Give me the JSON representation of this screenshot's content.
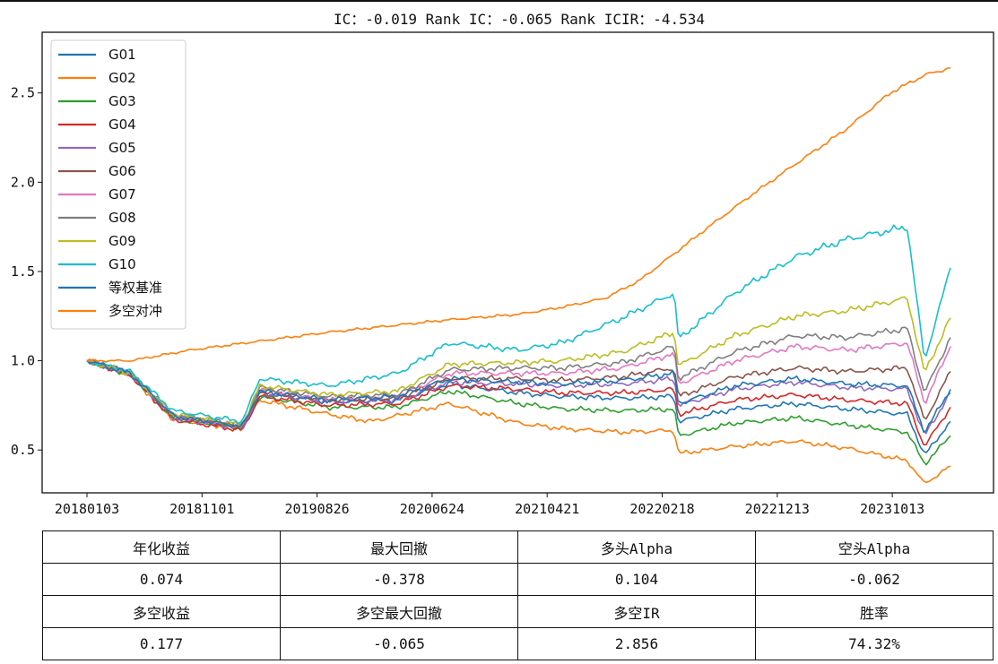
{
  "chart_data": {
    "type": "line",
    "title": "IC：-0.019    Rank IC：-0.065    Rank ICIR：-4.534",
    "xlabel": "",
    "ylabel": "",
    "x_tick_labels": [
      "20180103",
      "20181101",
      "20190826",
      "20200624",
      "20210421",
      "20220218",
      "20221213",
      "20231013"
    ],
    "x_range": [
      "20180103",
      "20240531"
    ],
    "ylim": [
      0.26,
      2.84
    ],
    "y_ticks": [
      0.5,
      1.0,
      1.5,
      2.0,
      2.5
    ],
    "y_tick_labels": [
      "0.5",
      "1.0",
      "1.5",
      "2.0",
      "2.5"
    ],
    "grid": false,
    "legend_position": "upper-left",
    "series": [
      {
        "name": "G01",
        "color": "#1f77b4",
        "points": [
          [
            0,
            1.0
          ],
          [
            0.05,
            0.93
          ],
          [
            0.1,
            0.68
          ],
          [
            0.18,
            0.63
          ],
          [
            0.2,
            0.82
          ],
          [
            0.28,
            0.77
          ],
          [
            0.36,
            0.78
          ],
          [
            0.42,
            0.87
          ],
          [
            0.5,
            0.82
          ],
          [
            0.55,
            0.8
          ],
          [
            0.62,
            0.79
          ],
          [
            0.68,
            0.8
          ],
          [
            0.685,
            0.66
          ],
          [
            0.75,
            0.73
          ],
          [
            0.82,
            0.76
          ],
          [
            0.88,
            0.73
          ],
          [
            0.95,
            0.7
          ],
          [
            0.97,
            0.47
          ],
          [
            1.0,
            0.66
          ]
        ]
      },
      {
        "name": "G02",
        "color": "#ff7f0e",
        "points": [
          [
            0,
            1.0
          ],
          [
            0.05,
            0.92
          ],
          [
            0.1,
            0.67
          ],
          [
            0.18,
            0.62
          ],
          [
            0.2,
            0.78
          ],
          [
            0.28,
            0.7
          ],
          [
            0.33,
            0.66
          ],
          [
            0.42,
            0.76
          ],
          [
            0.5,
            0.65
          ],
          [
            0.55,
            0.62
          ],
          [
            0.62,
            0.6
          ],
          [
            0.68,
            0.61
          ],
          [
            0.685,
            0.48
          ],
          [
            0.75,
            0.52
          ],
          [
            0.82,
            0.55
          ],
          [
            0.88,
            0.51
          ],
          [
            0.95,
            0.44
          ],
          [
            0.97,
            0.31
          ],
          [
            1.0,
            0.41
          ]
        ]
      },
      {
        "name": "G03",
        "color": "#2ca02c",
        "points": [
          [
            0,
            1.0
          ],
          [
            0.05,
            0.92
          ],
          [
            0.1,
            0.68
          ],
          [
            0.18,
            0.62
          ],
          [
            0.2,
            0.8
          ],
          [
            0.28,
            0.74
          ],
          [
            0.36,
            0.74
          ],
          [
            0.42,
            0.83
          ],
          [
            0.5,
            0.76
          ],
          [
            0.55,
            0.73
          ],
          [
            0.62,
            0.72
          ],
          [
            0.68,
            0.73
          ],
          [
            0.685,
            0.58
          ],
          [
            0.75,
            0.65
          ],
          [
            0.82,
            0.68
          ],
          [
            0.88,
            0.64
          ],
          [
            0.95,
            0.6
          ],
          [
            0.97,
            0.42
          ],
          [
            1.0,
            0.58
          ]
        ]
      },
      {
        "name": "G04",
        "color": "#d62728",
        "points": [
          [
            0,
            1.0
          ],
          [
            0.05,
            0.92
          ],
          [
            0.1,
            0.67
          ],
          [
            0.18,
            0.61
          ],
          [
            0.2,
            0.8
          ],
          [
            0.28,
            0.75
          ],
          [
            0.36,
            0.76
          ],
          [
            0.42,
            0.86
          ],
          [
            0.5,
            0.84
          ],
          [
            0.55,
            0.82
          ],
          [
            0.62,
            0.82
          ],
          [
            0.68,
            0.84
          ],
          [
            0.685,
            0.7
          ],
          [
            0.75,
            0.78
          ],
          [
            0.82,
            0.81
          ],
          [
            0.88,
            0.78
          ],
          [
            0.95,
            0.76
          ],
          [
            0.97,
            0.52
          ],
          [
            1.0,
            0.74
          ]
        ]
      },
      {
        "name": "G05",
        "color": "#9467bd",
        "points": [
          [
            0,
            1.0
          ],
          [
            0.05,
            0.93
          ],
          [
            0.1,
            0.68
          ],
          [
            0.18,
            0.62
          ],
          [
            0.2,
            0.82
          ],
          [
            0.28,
            0.77
          ],
          [
            0.36,
            0.78
          ],
          [
            0.42,
            0.88
          ],
          [
            0.5,
            0.87
          ],
          [
            0.55,
            0.86
          ],
          [
            0.62,
            0.87
          ],
          [
            0.68,
            0.9
          ],
          [
            0.685,
            0.75
          ],
          [
            0.75,
            0.84
          ],
          [
            0.82,
            0.88
          ],
          [
            0.88,
            0.85
          ],
          [
            0.95,
            0.84
          ],
          [
            0.97,
            0.58
          ],
          [
            1.0,
            0.82
          ]
        ]
      },
      {
        "name": "G06",
        "color": "#8c564b",
        "points": [
          [
            0,
            1.0
          ],
          [
            0.05,
            0.93
          ],
          [
            0.1,
            0.69
          ],
          [
            0.18,
            0.63
          ],
          [
            0.2,
            0.83
          ],
          [
            0.28,
            0.78
          ],
          [
            0.36,
            0.79
          ],
          [
            0.42,
            0.9
          ],
          [
            0.5,
            0.9
          ],
          [
            0.55,
            0.89
          ],
          [
            0.62,
            0.91
          ],
          [
            0.68,
            0.96
          ],
          [
            0.685,
            0.8
          ],
          [
            0.75,
            0.91
          ],
          [
            0.82,
            0.96
          ],
          [
            0.88,
            0.94
          ],
          [
            0.95,
            0.96
          ],
          [
            0.97,
            0.66
          ],
          [
            1.0,
            0.94
          ]
        ]
      },
      {
        "name": "G07",
        "color": "#e377c2",
        "points": [
          [
            0,
            1.0
          ],
          [
            0.05,
            0.93
          ],
          [
            0.1,
            0.69
          ],
          [
            0.18,
            0.63
          ],
          [
            0.2,
            0.84
          ],
          [
            0.28,
            0.79
          ],
          [
            0.36,
            0.8
          ],
          [
            0.42,
            0.93
          ],
          [
            0.5,
            0.93
          ],
          [
            0.55,
            0.93
          ],
          [
            0.62,
            0.96
          ],
          [
            0.68,
            1.04
          ],
          [
            0.685,
            0.87
          ],
          [
            0.75,
            1.0
          ],
          [
            0.82,
            1.08
          ],
          [
            0.88,
            1.06
          ],
          [
            0.95,
            1.1
          ],
          [
            0.97,
            0.76
          ],
          [
            1.0,
            1.08
          ]
        ]
      },
      {
        "name": "G08",
        "color": "#7f7f7f",
        "points": [
          [
            0,
            1.0
          ],
          [
            0.05,
            0.93
          ],
          [
            0.1,
            0.7
          ],
          [
            0.18,
            0.64
          ],
          [
            0.2,
            0.85
          ],
          [
            0.28,
            0.8
          ],
          [
            0.36,
            0.81
          ],
          [
            0.42,
            0.95
          ],
          [
            0.5,
            0.96
          ],
          [
            0.55,
            0.96
          ],
          [
            0.62,
            0.99
          ],
          [
            0.68,
            1.08
          ],
          [
            0.685,
            0.9
          ],
          [
            0.75,
            1.05
          ],
          [
            0.82,
            1.14
          ],
          [
            0.88,
            1.13
          ],
          [
            0.95,
            1.18
          ],
          [
            0.97,
            0.82
          ],
          [
            1.0,
            1.13
          ]
        ]
      },
      {
        "name": "G09",
        "color": "#bcbd22",
        "points": [
          [
            0,
            1.0
          ],
          [
            0.05,
            0.93
          ],
          [
            0.1,
            0.7
          ],
          [
            0.18,
            0.64
          ],
          [
            0.2,
            0.86
          ],
          [
            0.28,
            0.81
          ],
          [
            0.36,
            0.83
          ],
          [
            0.42,
            0.98
          ],
          [
            0.5,
            0.99
          ],
          [
            0.55,
            1.0
          ],
          [
            0.62,
            1.05
          ],
          [
            0.68,
            1.16
          ],
          [
            0.685,
            0.97
          ],
          [
            0.75,
            1.14
          ],
          [
            0.82,
            1.25
          ],
          [
            0.88,
            1.28
          ],
          [
            0.95,
            1.35
          ],
          [
            0.97,
            0.93
          ],
          [
            1.0,
            1.24
          ]
        ]
      },
      {
        "name": "G10",
        "color": "#17becf",
        "points": [
          [
            0,
            1.0
          ],
          [
            0.05,
            0.94
          ],
          [
            0.1,
            0.72
          ],
          [
            0.18,
            0.66
          ],
          [
            0.2,
            0.9
          ],
          [
            0.28,
            0.86
          ],
          [
            0.36,
            0.93
          ],
          [
            0.42,
            1.1
          ],
          [
            0.5,
            1.06
          ],
          [
            0.55,
            1.1
          ],
          [
            0.62,
            1.24
          ],
          [
            0.68,
            1.38
          ],
          [
            0.685,
            1.12
          ],
          [
            0.75,
            1.38
          ],
          [
            0.82,
            1.58
          ],
          [
            0.88,
            1.68
          ],
          [
            0.95,
            1.75
          ],
          [
            0.97,
            1.0
          ],
          [
            1.0,
            1.52
          ]
        ]
      },
      {
        "name": "等权基准",
        "color": "#1f77b4",
        "points": [
          [
            0,
            1.0
          ],
          [
            0.05,
            0.93
          ],
          [
            0.1,
            0.69
          ],
          [
            0.18,
            0.63
          ],
          [
            0.2,
            0.83
          ],
          [
            0.28,
            0.78
          ],
          [
            0.36,
            0.8
          ],
          [
            0.42,
            0.9
          ],
          [
            0.5,
            0.88
          ],
          [
            0.55,
            0.87
          ],
          [
            0.62,
            0.89
          ],
          [
            0.68,
            0.93
          ],
          [
            0.685,
            0.76
          ],
          [
            0.75,
            0.86
          ],
          [
            0.82,
            0.9
          ],
          [
            0.88,
            0.87
          ],
          [
            0.95,
            0.86
          ],
          [
            0.97,
            0.6
          ],
          [
            1.0,
            0.84
          ]
        ]
      },
      {
        "name": "多空对冲",
        "color": "#ff7f0e",
        "points": [
          [
            0,
            1.0
          ],
          [
            0.05,
            1.0
          ],
          [
            0.12,
            1.06
          ],
          [
            0.2,
            1.11
          ],
          [
            0.28,
            1.16
          ],
          [
            0.36,
            1.2
          ],
          [
            0.42,
            1.23
          ],
          [
            0.5,
            1.26
          ],
          [
            0.55,
            1.3
          ],
          [
            0.6,
            1.35
          ],
          [
            0.64,
            1.45
          ],
          [
            0.68,
            1.6
          ],
          [
            0.72,
            1.75
          ],
          [
            0.77,
            1.93
          ],
          [
            0.82,
            2.1
          ],
          [
            0.88,
            2.3
          ],
          [
            0.93,
            2.5
          ],
          [
            0.97,
            2.6
          ],
          [
            1.0,
            2.64
          ]
        ]
      }
    ]
  },
  "table": {
    "rows": [
      [
        "年化收益",
        "最大回撤",
        "多头Alpha",
        "空头Alpha"
      ],
      [
        "0.074",
        "-0.378",
        "0.104",
        "-0.062"
      ],
      [
        "多空收益",
        "多空最大回撤",
        "多空IR",
        "胜率"
      ],
      [
        "0.177",
        "-0.065",
        "2.856",
        "74.32%"
      ]
    ]
  }
}
